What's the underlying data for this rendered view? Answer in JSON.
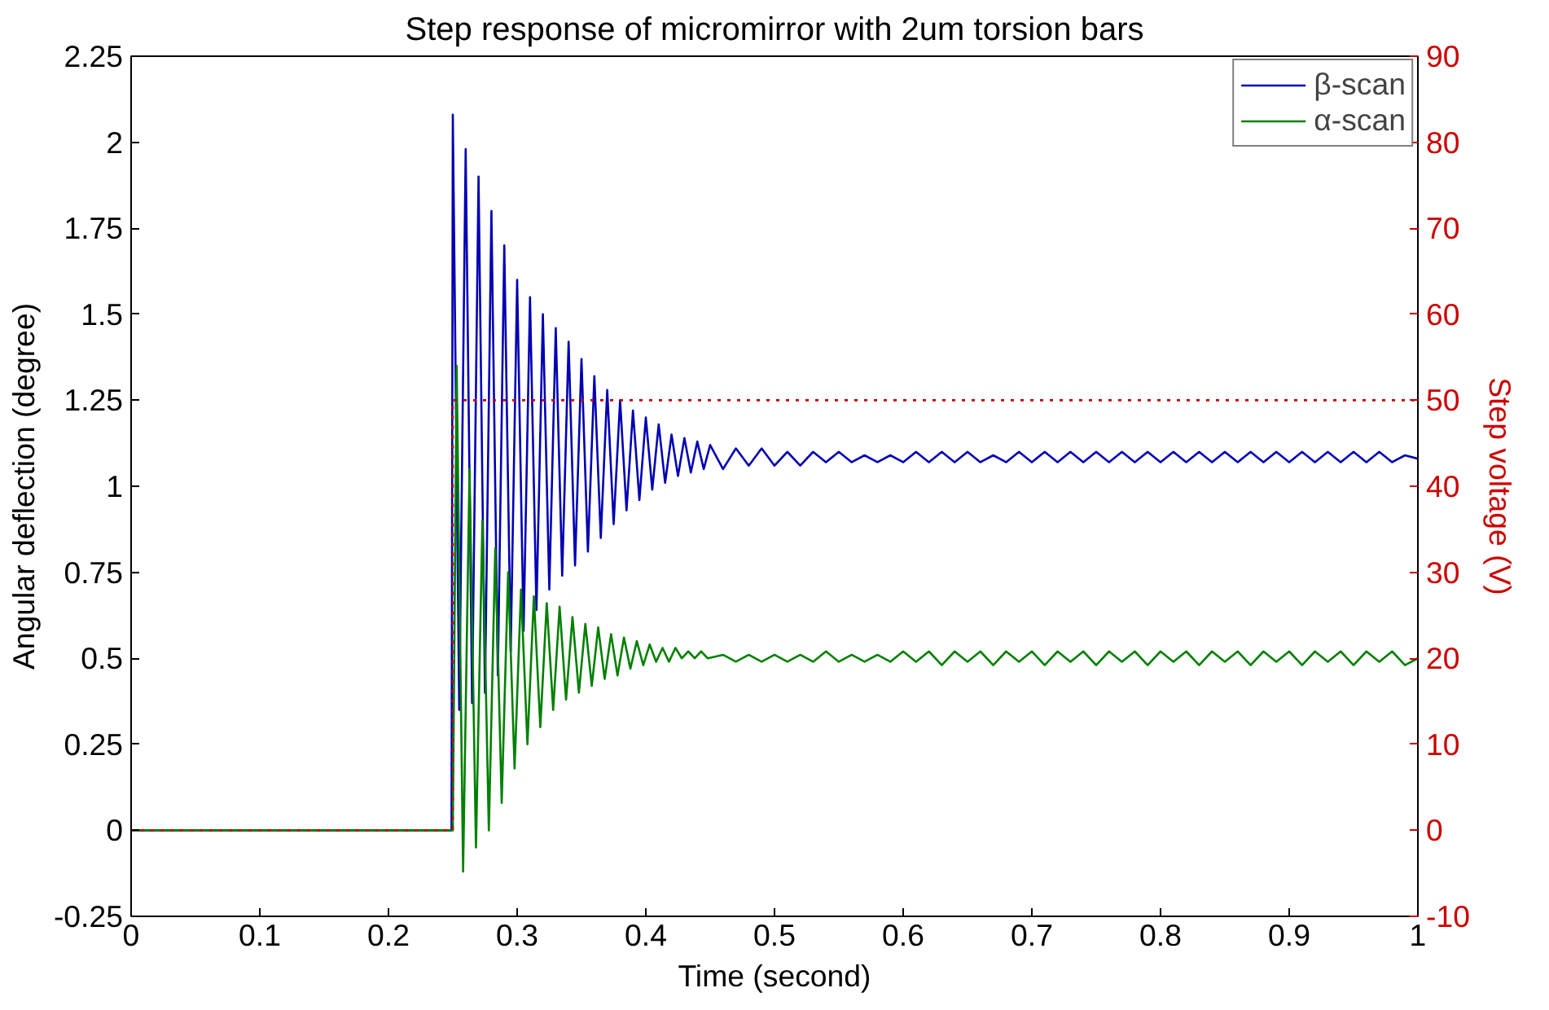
{
  "chart_data": {
    "type": "line",
    "title": "Step response of micromirror with 2um torsion bars",
    "xlabel": "Time (second)",
    "ylabel": "Angular deflection (degree)",
    "y2label": "Step voltage (V)",
    "xlim": [
      0,
      1
    ],
    "xticks": [
      0,
      0.1,
      0.2,
      0.3,
      0.4,
      0.5,
      0.6,
      0.7,
      0.8,
      0.9,
      1
    ],
    "ylim": [
      -0.25,
      2.25
    ],
    "yticks": [
      -0.25,
      0,
      0.25,
      0.5,
      0.75,
      1,
      1.25,
      1.5,
      1.75,
      2,
      2.25
    ],
    "y2lim": [
      -10,
      90
    ],
    "y2ticks": [
      -10,
      0,
      10,
      20,
      30,
      40,
      50,
      60,
      70,
      80,
      90
    ],
    "legend": "top right",
    "grid": false,
    "series": [
      {
        "name": "β-scan",
        "color": "#0000b4",
        "x": [
          0,
          0.249,
          0.25,
          0.255,
          0.26,
          0.265,
          0.27,
          0.275,
          0.28,
          0.285,
          0.29,
          0.295,
          0.3,
          0.305,
          0.31,
          0.315,
          0.32,
          0.325,
          0.33,
          0.335,
          0.34,
          0.345,
          0.35,
          0.355,
          0.36,
          0.365,
          0.37,
          0.375,
          0.38,
          0.385,
          0.39,
          0.395,
          0.4,
          0.405,
          0.41,
          0.415,
          0.42,
          0.425,
          0.43,
          0.435,
          0.44,
          0.445,
          0.45,
          0.46,
          0.47,
          0.48,
          0.49,
          0.5,
          0.51,
          0.52,
          0.53,
          0.54,
          0.55,
          0.56,
          0.57,
          0.58,
          0.59,
          0.6,
          0.61,
          0.62,
          0.63,
          0.64,
          0.65,
          0.66,
          0.67,
          0.68,
          0.69,
          0.7,
          0.71,
          0.72,
          0.73,
          0.74,
          0.75,
          0.76,
          0.77,
          0.78,
          0.79,
          0.8,
          0.81,
          0.82,
          0.83,
          0.84,
          0.85,
          0.86,
          0.87,
          0.88,
          0.89,
          0.9,
          0.91,
          0.92,
          0.93,
          0.94,
          0.95,
          0.96,
          0.97,
          0.98,
          0.99,
          1
        ],
        "values": [
          0,
          0,
          2.08,
          0.35,
          1.98,
          0.37,
          1.9,
          0.4,
          1.8,
          0.45,
          1.7,
          0.52,
          1.6,
          0.58,
          1.55,
          0.64,
          1.5,
          0.7,
          1.46,
          0.74,
          1.42,
          0.77,
          1.37,
          0.81,
          1.32,
          0.85,
          1.28,
          0.89,
          1.25,
          0.93,
          1.22,
          0.96,
          1.2,
          0.99,
          1.18,
          1.01,
          1.15,
          1.03,
          1.14,
          1.04,
          1.13,
          1.05,
          1.12,
          1.05,
          1.11,
          1.06,
          1.11,
          1.06,
          1.1,
          1.06,
          1.1,
          1.07,
          1.1,
          1.07,
          1.09,
          1.07,
          1.09,
          1.07,
          1.1,
          1.07,
          1.1,
          1.07,
          1.1,
          1.07,
          1.09,
          1.07,
          1.1,
          1.07,
          1.1,
          1.07,
          1.1,
          1.07,
          1.1,
          1.07,
          1.1,
          1.07,
          1.1,
          1.07,
          1.1,
          1.07,
          1.1,
          1.07,
          1.1,
          1.07,
          1.1,
          1.07,
          1.1,
          1.07,
          1.1,
          1.07,
          1.1,
          1.07,
          1.1,
          1.07,
          1.1,
          1.07,
          1.09,
          1.08
        ]
      },
      {
        "name": "α-scan",
        "color": "#008000",
        "x": [
          0,
          0.249,
          0.25,
          0.253,
          0.258,
          0.263,
          0.268,
          0.273,
          0.278,
          0.283,
          0.288,
          0.293,
          0.298,
          0.303,
          0.308,
          0.313,
          0.318,
          0.323,
          0.328,
          0.333,
          0.338,
          0.343,
          0.348,
          0.353,
          0.358,
          0.363,
          0.368,
          0.373,
          0.378,
          0.383,
          0.388,
          0.393,
          0.398,
          0.403,
          0.408,
          0.413,
          0.418,
          0.423,
          0.428,
          0.433,
          0.438,
          0.443,
          0.448,
          0.46,
          0.47,
          0.48,
          0.49,
          0.5,
          0.51,
          0.52,
          0.53,
          0.54,
          0.55,
          0.56,
          0.57,
          0.58,
          0.59,
          0.6,
          0.61,
          0.62,
          0.63,
          0.64,
          0.65,
          0.66,
          0.67,
          0.68,
          0.69,
          0.7,
          0.71,
          0.72,
          0.73,
          0.74,
          0.75,
          0.76,
          0.77,
          0.78,
          0.79,
          0.8,
          0.81,
          0.82,
          0.83,
          0.84,
          0.85,
          0.86,
          0.87,
          0.88,
          0.89,
          0.9,
          0.91,
          0.92,
          0.93,
          0.94,
          0.95,
          0.96,
          0.97,
          0.98,
          0.99,
          1
        ],
        "values": [
          0,
          0,
          0,
          1.35,
          -0.12,
          1.05,
          -0.05,
          0.9,
          0,
          0.82,
          0.08,
          0.75,
          0.18,
          0.7,
          0.25,
          0.68,
          0.3,
          0.66,
          0.35,
          0.65,
          0.38,
          0.62,
          0.4,
          0.6,
          0.42,
          0.59,
          0.44,
          0.57,
          0.45,
          0.56,
          0.47,
          0.55,
          0.48,
          0.54,
          0.49,
          0.53,
          0.49,
          0.53,
          0.5,
          0.52,
          0.5,
          0.52,
          0.5,
          0.51,
          0.49,
          0.51,
          0.49,
          0.51,
          0.49,
          0.51,
          0.49,
          0.52,
          0.49,
          0.51,
          0.49,
          0.51,
          0.49,
          0.52,
          0.49,
          0.52,
          0.48,
          0.52,
          0.49,
          0.52,
          0.48,
          0.52,
          0.49,
          0.52,
          0.48,
          0.52,
          0.49,
          0.52,
          0.48,
          0.52,
          0.49,
          0.52,
          0.48,
          0.52,
          0.49,
          0.52,
          0.48,
          0.52,
          0.49,
          0.52,
          0.48,
          0.52,
          0.49,
          0.52,
          0.48,
          0.52,
          0.49,
          0.52,
          0.48,
          0.52,
          0.49,
          0.52,
          0.48,
          0.5
        ]
      },
      {
        "color": "#cc0000",
        "axis": "y2",
        "line_style": "dotted",
        "x": [
          0,
          0.25,
          0.25,
          1
        ],
        "values": [
          0,
          0,
          50,
          50
        ]
      }
    ]
  }
}
